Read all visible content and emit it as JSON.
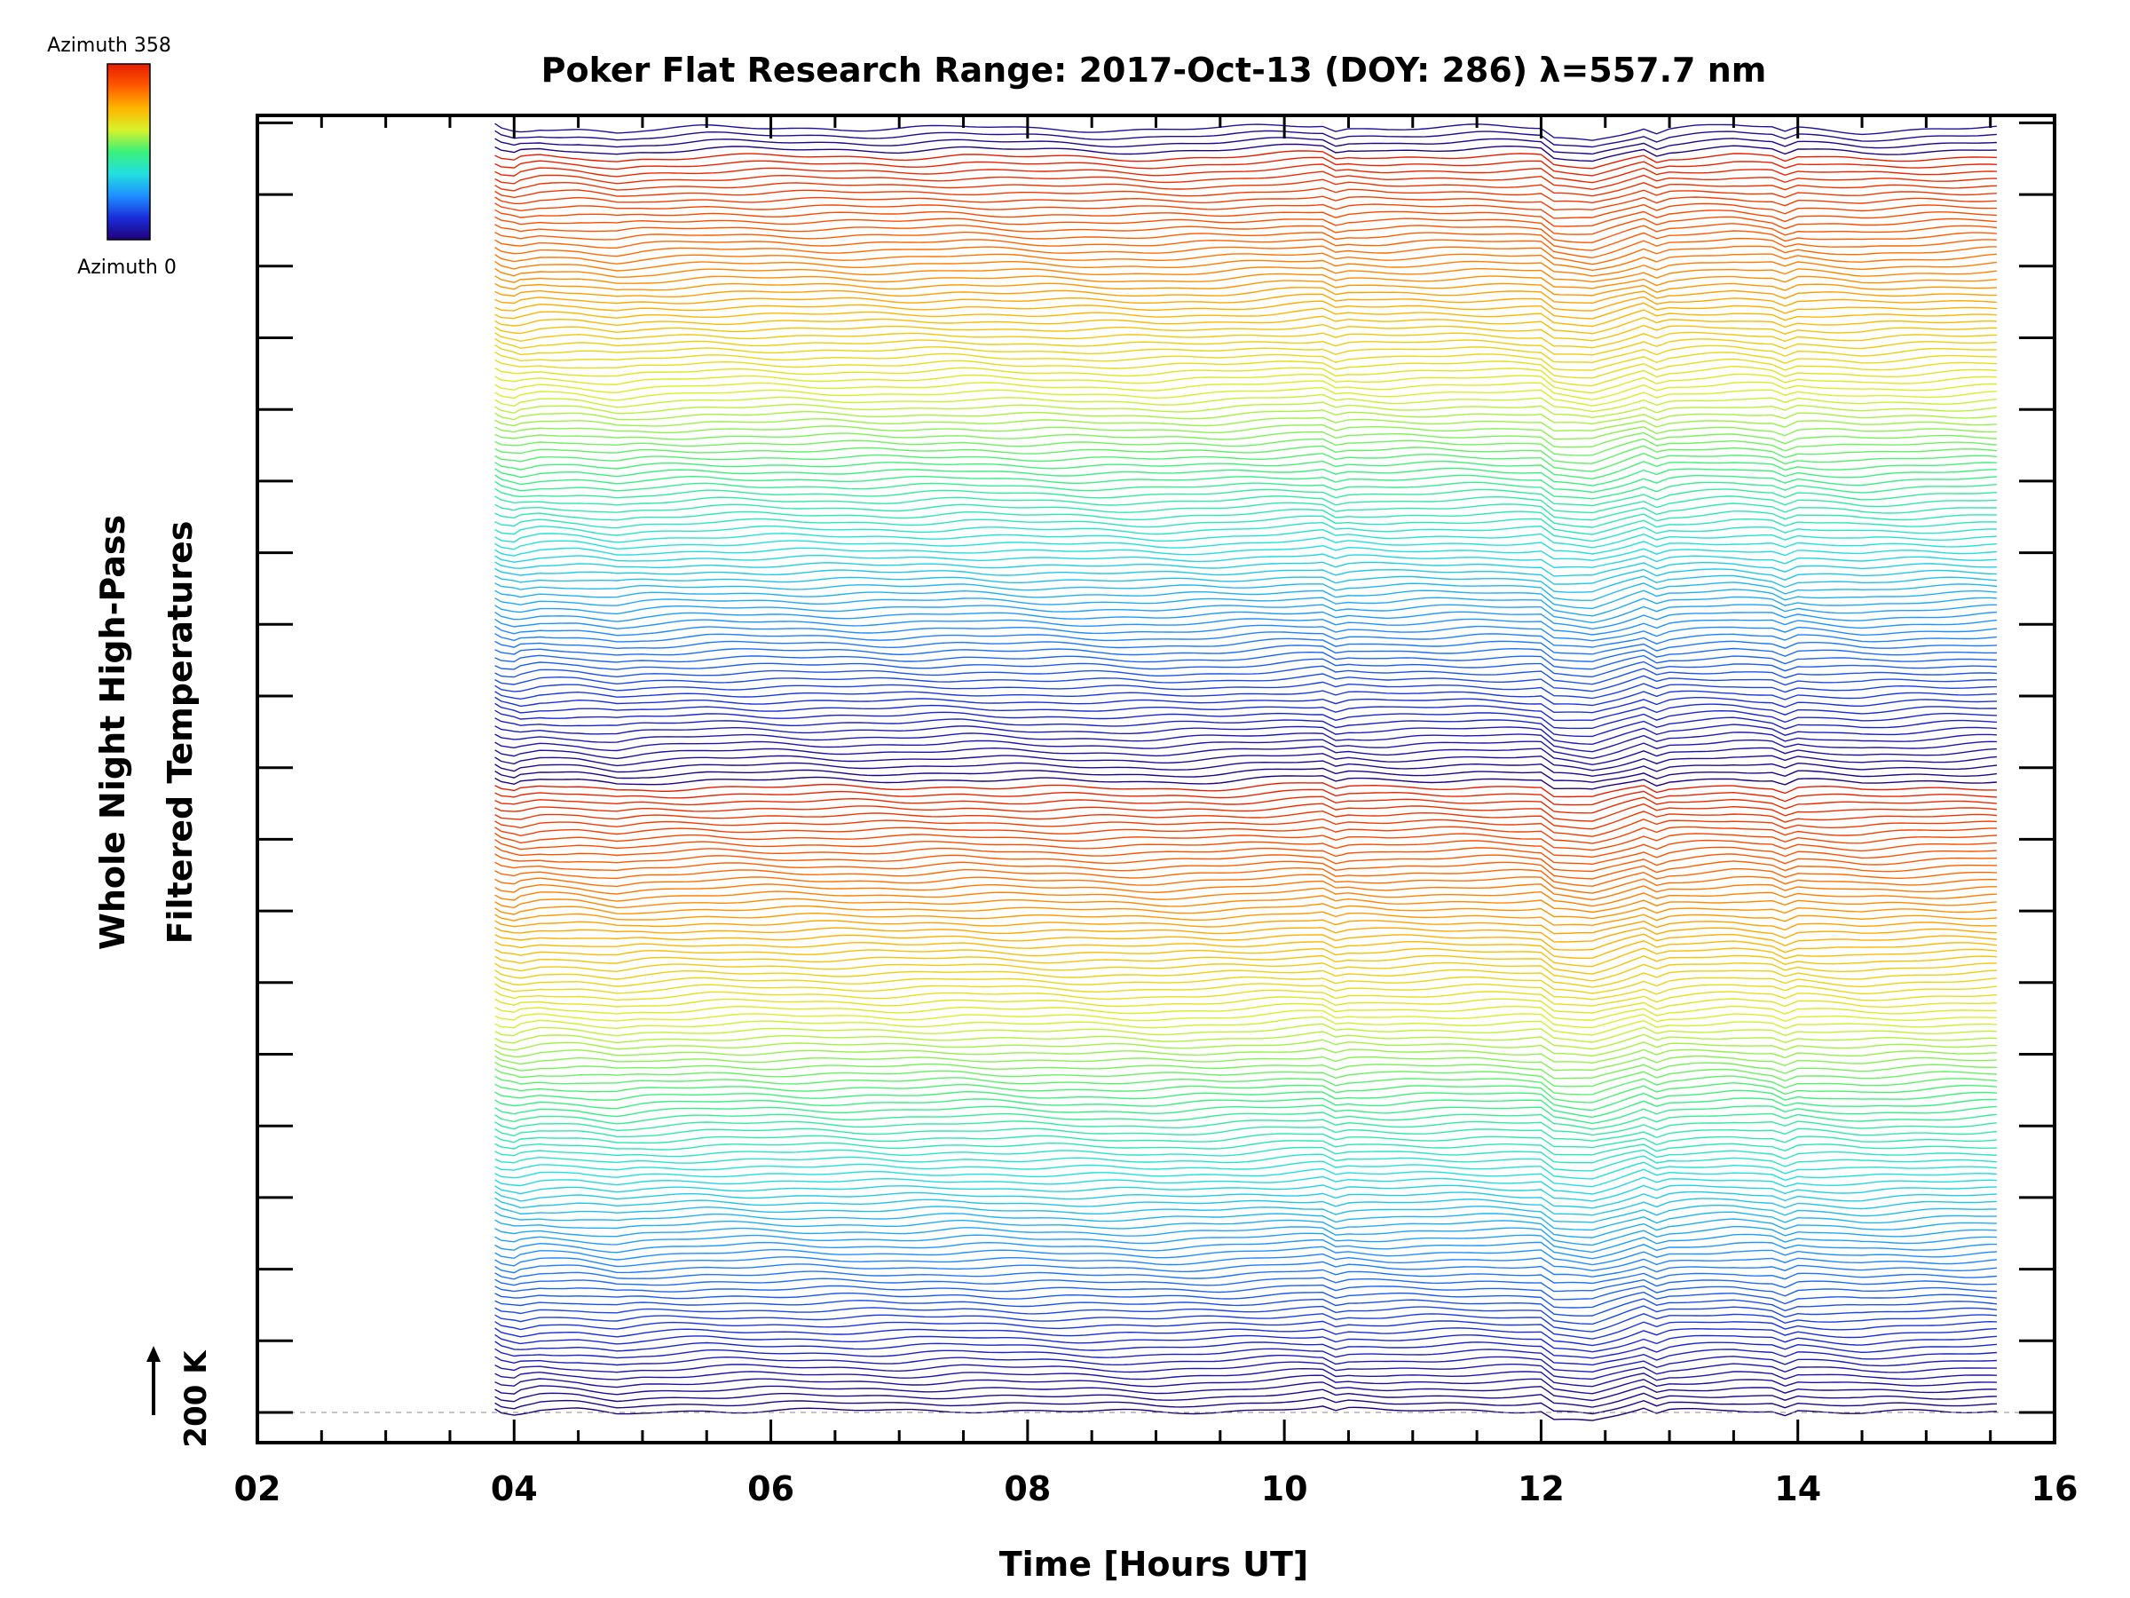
{
  "chart_data": {
    "type": "line",
    "title": "Poker Flat Research Range: 2017-Oct-13 (DOY: 286) λ=557.7 nm",
    "xlabel": "Time [Hours UT]",
    "ylabel_line1": "Whole Night High-Pass",
    "ylabel_line2": "Filtered Temperatures",
    "scale_label": "200 K",
    "xlim": [
      2,
      16
    ],
    "xticks": [
      "02",
      "04",
      "06",
      "08",
      "10",
      "12",
      "14",
      "16"
    ],
    "x_start": 3.85,
    "x_end": 15.55,
    "series_count": 180,
    "trace_offset_K": 10,
    "azimuth_range": [
      0,
      358
    ],
    "legend": {
      "title_top": "Azimuth 358",
      "title_bottom": "Azimuth 0",
      "position": "top-left"
    },
    "colormap": [
      "#20007a",
      "#1a2dd9",
      "#1f8fff",
      "#22e0e0",
      "#3bf07a",
      "#d8f22a",
      "#ffb400",
      "#ff5a00",
      "#e61c00"
    ],
    "mean_profile": {
      "x": [
        3.85,
        3.9,
        4.0,
        4.2,
        4.5,
        4.8,
        5.0,
        5.5,
        6.0,
        7.0,
        7.5,
        8.0,
        9.0,
        9.5,
        10.0,
        10.3,
        10.4,
        10.5,
        10.8,
        11.0,
        11.5,
        12.0,
        12.1,
        12.4,
        12.6,
        12.8,
        12.9,
        13.0,
        13.2,
        13.5,
        13.8,
        13.9,
        14.0,
        14.5,
        15.0,
        15.5
      ],
      "y_K": [
        6,
        1,
        -2,
        3,
        2,
        -3,
        0,
        3,
        3,
        2,
        4,
        2,
        0,
        2,
        6,
        8,
        0,
        3,
        2,
        3,
        4,
        3,
        -10,
        -14,
        -5,
        5,
        -3,
        2,
        4,
        6,
        3,
        -4,
        2,
        -2,
        1,
        3
      ]
    }
  }
}
